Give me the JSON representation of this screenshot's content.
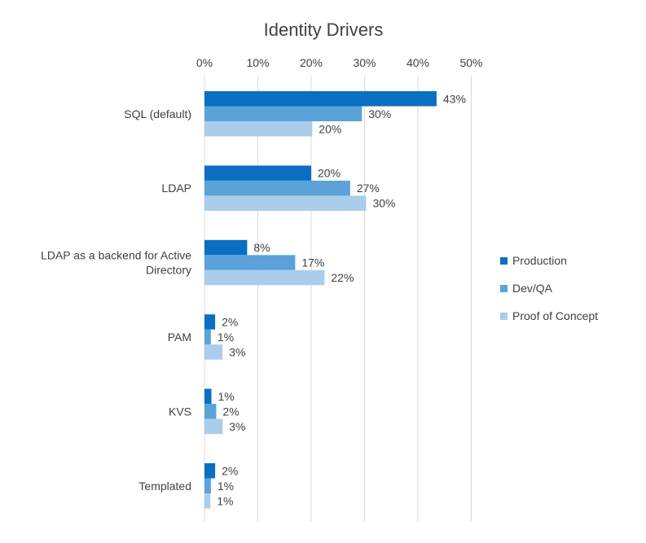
{
  "chart_data": {
    "type": "bar",
    "orientation": "horizontal",
    "title": "Identity Drivers",
    "categories": [
      "SQL (default)",
      "LDAP",
      "LDAP as a backend for Active Directory",
      "PAM",
      "KVS",
      "Templated"
    ],
    "category_lines": [
      [
        "SQL (default)"
      ],
      [
        "LDAP"
      ],
      [
        "LDAP as a backend for Active",
        "Directory"
      ],
      [
        "PAM"
      ],
      [
        "KVS"
      ],
      [
        "Templated"
      ]
    ],
    "xlim": [
      0,
      50
    ],
    "xticks": [
      "0%",
      "10%",
      "20%",
      "30%",
      "40%",
      "50%"
    ],
    "xaxis_position": "top",
    "grid": true,
    "legend": "right",
    "series": [
      {
        "name": "Production",
        "color": "#0a6fc2",
        "values": [
          43.5,
          20,
          8,
          2,
          1.3,
          2
        ],
        "labels": [
          "43%",
          "20%",
          "8%",
          "2%",
          "1%",
          "2%"
        ]
      },
      {
        "name": "Dev/QA",
        "color": "#5aa2d8",
        "values": [
          29.5,
          27.3,
          17,
          1.2,
          2.2,
          1.2
        ],
        "labels": [
          "30%",
          "27%",
          "17%",
          "1%",
          "2%",
          "1%"
        ]
      },
      {
        "name": "Proof of Concept",
        "color": "#a9cdea",
        "values": [
          20.2,
          30.3,
          22.5,
          3.4,
          3.4,
          1.1
        ],
        "labels": [
          "20%",
          "30%",
          "22%",
          "3%",
          "3%",
          "1%"
        ]
      }
    ]
  }
}
